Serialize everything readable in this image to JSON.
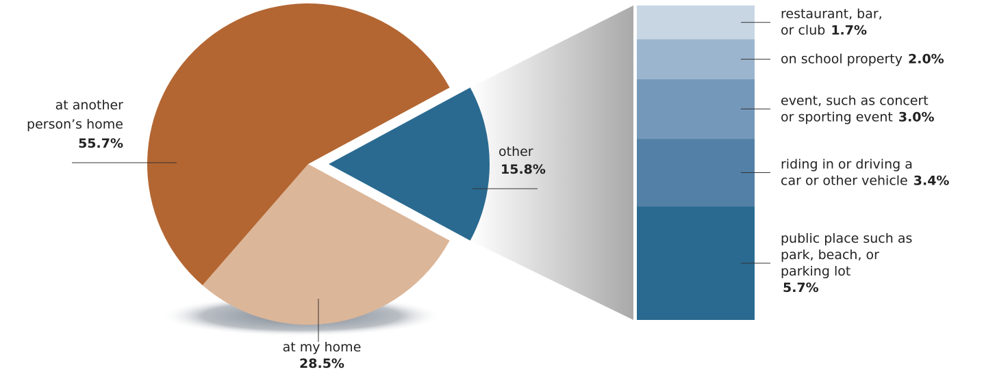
{
  "chart_data": {
    "type": "pie",
    "categories": [
      [
        "at another",
        "person’s home"
      ],
      [
        "at my home"
      ],
      [
        "other"
      ]
    ],
    "values": [
      55.7,
      28.5,
      15.8
    ],
    "value_labels": [
      "55.7%",
      "28.5%",
      "15.8%"
    ],
    "colors": [
      "#b36632",
      "#dcb699",
      "#2a6a90"
    ],
    "breakdown": {
      "categories": [
        [
          "restaurant, bar,",
          "or club"
        ],
        [
          "on school property"
        ],
        [
          "event, such as concert",
          "or sporting event"
        ],
        [
          "riding in or driving a",
          "car or other vehicle"
        ],
        [
          "public place such as",
          "park, beach, or",
          "parking lot"
        ]
      ],
      "values": [
        1.7,
        2.0,
        3.0,
        3.4,
        5.7
      ],
      "value_labels": [
        "1.7%",
        "2.0%",
        "3.0%",
        "3.4%",
        "5.7%"
      ],
      "colors": [
        "#c8d6e3",
        "#9bb5ce",
        "#7498ba",
        "#5380a6",
        "#2a6a90"
      ]
    }
  }
}
